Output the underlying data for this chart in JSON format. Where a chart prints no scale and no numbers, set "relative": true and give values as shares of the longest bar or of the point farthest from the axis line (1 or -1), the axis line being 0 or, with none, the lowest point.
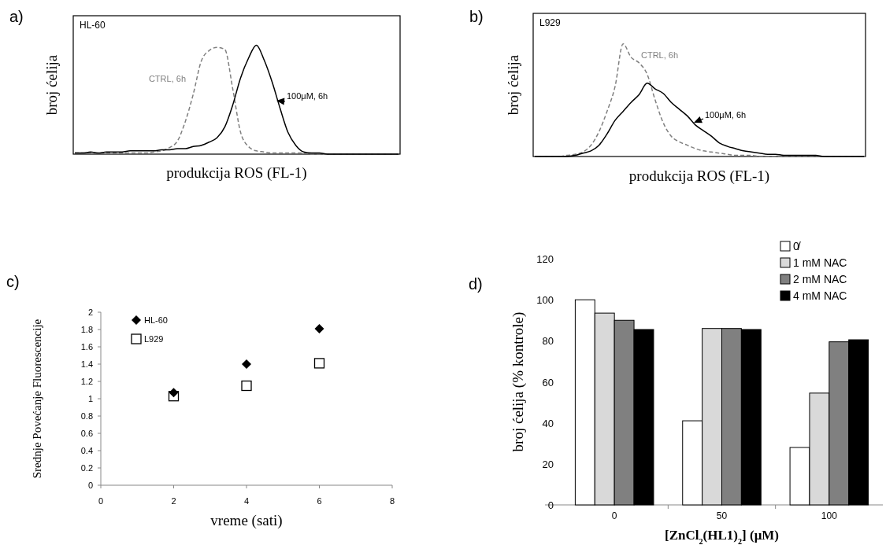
{
  "chart_data": [
    {
      "type": "line",
      "title": "a)",
      "xlabel": "produkcija ROS (FL-1)",
      "ylabel": "broj ćelija",
      "relative": true,
      "annotations": [
        "HL-60"
      ],
      "categories": [
        null,
        null,
        null,
        null,
        null,
        null,
        null,
        null,
        null,
        null,
        null,
        null,
        null,
        null,
        null,
        null,
        null,
        null,
        null,
        null,
        null,
        null,
        null,
        null,
        null,
        null,
        null,
        null,
        null,
        null,
        null,
        null,
        null,
        null,
        null,
        null,
        null,
        null,
        null,
        null,
        null,
        null
      ],
      "series": [
        {
          "name": "CTRL, 6h",
          "color": "#808080",
          "line_style": "dashed",
          "values": [
            0.01,
            0.01,
            0.01,
            0.01,
            0.01,
            0.01,
            0.01,
            0.01,
            0.01,
            0.01,
            0.02,
            0.03,
            0.06,
            0.12,
            0.3,
            0.55,
            0.85,
            0.95,
            0.98,
            0.96,
            0.6,
            0.2,
            0.07,
            0.03,
            0.02,
            0.01,
            0.01,
            0.01,
            0.01,
            0.01,
            0,
            0,
            0,
            0,
            0,
            0,
            0,
            0,
            0,
            0,
            0,
            0
          ]
        },
        {
          "name": "100μM, 6h",
          "color": "#000000",
          "line_style": "solid",
          "values": [
            0.01,
            0.01,
            0.02,
            0.01,
            0.02,
            0.02,
            0.02,
            0.03,
            0.03,
            0.03,
            0.03,
            0.04,
            0.04,
            0.05,
            0.05,
            0.07,
            0.08,
            0.11,
            0.15,
            0.25,
            0.45,
            0.7,
            0.88,
            1.0,
            0.86,
            0.66,
            0.42,
            0.2,
            0.08,
            0.02,
            0.01,
            0.01,
            0,
            0,
            0,
            0,
            0,
            0,
            0,
            0,
            0,
            0
          ]
        }
      ]
    },
    {
      "type": "line",
      "title": "b)",
      "xlabel": "produkcija ROS (FL-1)",
      "ylabel": "broj ćelija",
      "relative": true,
      "annotations": [
        "L929"
      ],
      "categories": [
        null,
        null,
        null,
        null,
        null,
        null,
        null,
        null,
        null,
        null,
        null,
        null,
        null,
        null,
        null,
        null,
        null,
        null,
        null,
        null,
        null,
        null,
        null,
        null,
        null,
        null,
        null,
        null,
        null,
        null,
        null,
        null,
        null,
        null,
        null,
        null,
        null,
        null,
        null,
        null,
        null,
        null
      ],
      "series": [
        {
          "name": "CTRL, 6h",
          "color": "#808080",
          "line_style": "dashed",
          "values": [
            0,
            0,
            0,
            0,
            0.01,
            0.02,
            0.04,
            0.1,
            0.22,
            0.4,
            0.62,
            1.0,
            0.88,
            0.83,
            0.73,
            0.5,
            0.3,
            0.18,
            0.13,
            0.1,
            0.07,
            0.05,
            0.04,
            0.03,
            0.02,
            0.01,
            0.01,
            0.01,
            0,
            0,
            0,
            0,
            0,
            0,
            0,
            0,
            0,
            0,
            0,
            0,
            0,
            0
          ]
        },
        {
          "name": "100μM, 6h",
          "color": "#000000",
          "line_style": "solid",
          "values": [
            0,
            0,
            0,
            0,
            0,
            0.01,
            0.03,
            0.05,
            0.1,
            0.2,
            0.32,
            0.4,
            0.48,
            0.55,
            0.65,
            0.6,
            0.56,
            0.48,
            0.42,
            0.36,
            0.28,
            0.23,
            0.18,
            0.12,
            0.09,
            0.07,
            0.05,
            0.04,
            0.03,
            0.02,
            0.02,
            0.01,
            0.01,
            0.01,
            0.01,
            0.01,
            0,
            0,
            0,
            0,
            0,
            0
          ]
        }
      ]
    },
    {
      "type": "scatter",
      "title": "c)",
      "xlabel": "vreme (sati)",
      "ylabel": "Srednje Povećanje Fluorescencije",
      "legend": "top left",
      "grid": false,
      "x": [
        2,
        4,
        6
      ],
      "xlim": [
        0,
        8
      ],
      "xticks": [
        0,
        2,
        4,
        6,
        8
      ],
      "ylim": [
        0,
        2
      ],
      "yticks": [
        0,
        0.2,
        0.4,
        0.6,
        0.8,
        1,
        1.2,
        1.4,
        1.6,
        1.8,
        2
      ],
      "series": [
        {
          "name": "HL-60",
          "color": "#000000",
          "marker": "diamond",
          "values": [
            1.07,
            1.4,
            1.81
          ]
        },
        {
          "name": "L929",
          "color": "#000000",
          "marker": "square",
          "values": [
            1.03,
            1.15,
            1.41
          ]
        }
      ]
    },
    {
      "type": "bar",
      "title": "d)",
      "xlabel": "[ZnCl$_{2}$(HL1)$_{2}$] (μM)",
      "ylabel": "broj ćelija (% kontrole)",
      "legend": "top right",
      "grid": false,
      "categories": [
        "0",
        "50",
        "100"
      ],
      "ylim": [
        0,
        120
      ],
      "yticks": [
        0,
        20,
        40,
        60,
        80,
        100,
        120
      ],
      "series": [
        {
          "name": "0̸",
          "color": "#ffffff",
          "values": [
            100,
            41,
            28
          ]
        },
        {
          "name": "1 mM NAC",
          "color": "#d9d9d9",
          "values": [
            93.5,
            86,
            54.5
          ]
        },
        {
          "name": "2 mM NAC",
          "color": "#808080",
          "values": [
            90,
            86,
            79.5
          ]
        },
        {
          "name": "4 mM NAC",
          "color": "#000000",
          "values": [
            85.5,
            85.5,
            80.5
          ]
        }
      ]
    }
  ]
}
